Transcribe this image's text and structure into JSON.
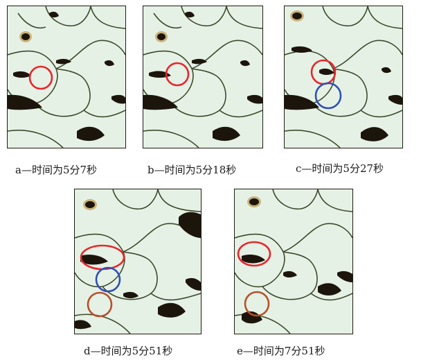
{
  "figure": {
    "panels": [
      {
        "id": "a",
        "caption": "a—时间为5分7秒",
        "markers": [
          "red"
        ]
      },
      {
        "id": "b",
        "caption": "b—时间为5分18秒",
        "markers": [
          "red"
        ]
      },
      {
        "id": "c",
        "caption": "c—时间为5分27秒",
        "markers": [
          "red",
          "blue"
        ]
      },
      {
        "id": "d",
        "caption": "d—时间为5分51秒",
        "markers": [
          "red",
          "blue",
          "brown"
        ]
      },
      {
        "id": "e",
        "caption": "e—时间为7分51秒",
        "markers": [
          "red",
          "brown"
        ]
      }
    ],
    "marker_colors": {
      "red": "#e8262b",
      "blue": "#2d4fb5",
      "brown": "#b5502a"
    },
    "image_colors": {
      "matrix": "#e6f1e6",
      "dark_phase": "#1c150c",
      "boundary": "#3d4a2a"
    }
  }
}
